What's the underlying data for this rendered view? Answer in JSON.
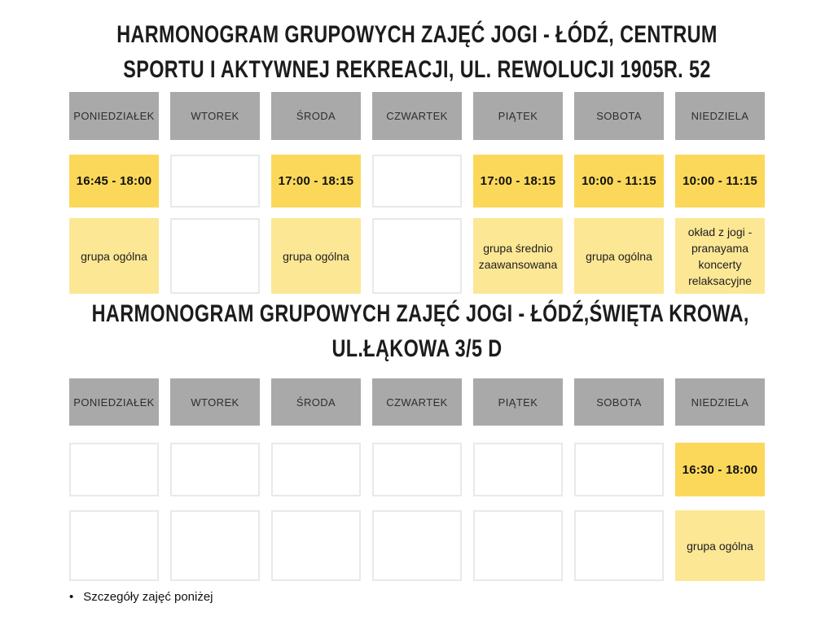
{
  "colors": {
    "day_header_bg": "#a9a9a9",
    "time_cell_bg": "#fbd85a",
    "group_cell_bg": "#fce795",
    "empty_cell_border": "#e9e9e9",
    "title_text": "#1c1c1c"
  },
  "schedules": [
    {
      "title_line1": "HARMONOGRAM GRUPOWYCH ZAJĘĆ JOGI -  ŁÓDŹ, CENTRUM",
      "title_line2": "SPORTU I AKTYWNEJ REKREACJI, UL. REWOLUCJI 1905R. 52",
      "days": [
        "PONIEDZIAŁEK",
        "WTOREK",
        "ŚRODA",
        "CZWARTEK",
        "PIĄTEK",
        "SOBOTA",
        "NIEDZIELA"
      ],
      "times": [
        "16:45 - 18:00",
        "",
        "17:00 - 18:15",
        "",
        "17:00 - 18:15",
        "10:00 - 11:15",
        "10:00 - 11:15"
      ],
      "groups": [
        "grupa ogólna",
        "",
        "grupa ogólna",
        "",
        "grupa średnio zaawansowana",
        "grupa ogólna",
        "okład z jogi - pranayama koncerty relaksacyjne"
      ]
    },
    {
      "title_line1": "HARMONOGRAM GRUPOWYCH ZAJĘĆ JOGI - ŁÓDŹ,ŚWIĘTA KROWA,",
      "title_line2": "UL.ŁĄKOWA 3/5 D",
      "days": [
        "PONIEDZIAŁEK",
        "WTOREK",
        "ŚRODA",
        "CZWARTEK",
        "PIĄTEK",
        "SOBOTA",
        "NIEDZIELA"
      ],
      "times": [
        "",
        "",
        "",
        "",
        "",
        "",
        "16:30 - 18:00"
      ],
      "groups": [
        "",
        "",
        "",
        "",
        "",
        "",
        "grupa ogólna"
      ]
    }
  ],
  "footnote": {
    "bullet": "•",
    "text": "Szczegóły zajęć poniżej"
  }
}
